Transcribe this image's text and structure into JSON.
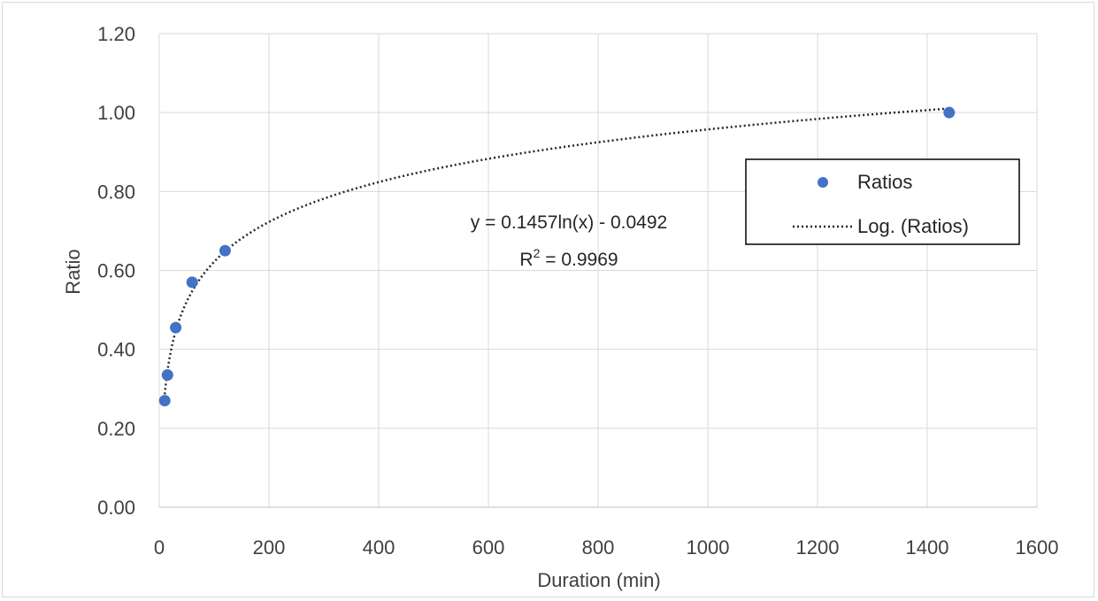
{
  "chart_data": {
    "type": "scatter",
    "title": "",
    "xlabel": "Duration (min)",
    "ylabel": "Ratio",
    "xlim": [
      0,
      1600
    ],
    "ylim": [
      0,
      1.2
    ],
    "x_ticks": [
      "0",
      "200",
      "400",
      "600",
      "800",
      "1000",
      "1200",
      "1400",
      "1600"
    ],
    "y_ticks": [
      "0.00",
      "0.20",
      "0.40",
      "0.60",
      "0.80",
      "1.00",
      "1.20"
    ],
    "grid": true,
    "legend_position": "right",
    "series": [
      {
        "name": "Ratios",
        "color": "#4472c4",
        "x": [
          10,
          15,
          30,
          60,
          120,
          1440
        ],
        "y": [
          0.27,
          0.335,
          0.455,
          0.57,
          0.65,
          1.0
        ]
      }
    ],
    "trendline": {
      "name": "Log. (Ratios)",
      "type": "logarithmic",
      "a": 0.1457,
      "b": -0.0492,
      "x_range": [
        10,
        1440
      ],
      "color": "#262626"
    },
    "equation": {
      "line1": "y = 0.1457ln(x) - 0.0492",
      "r2_prefix": "R",
      "r2_sup": "2",
      "r2_suffix": " = 0.9969"
    }
  }
}
